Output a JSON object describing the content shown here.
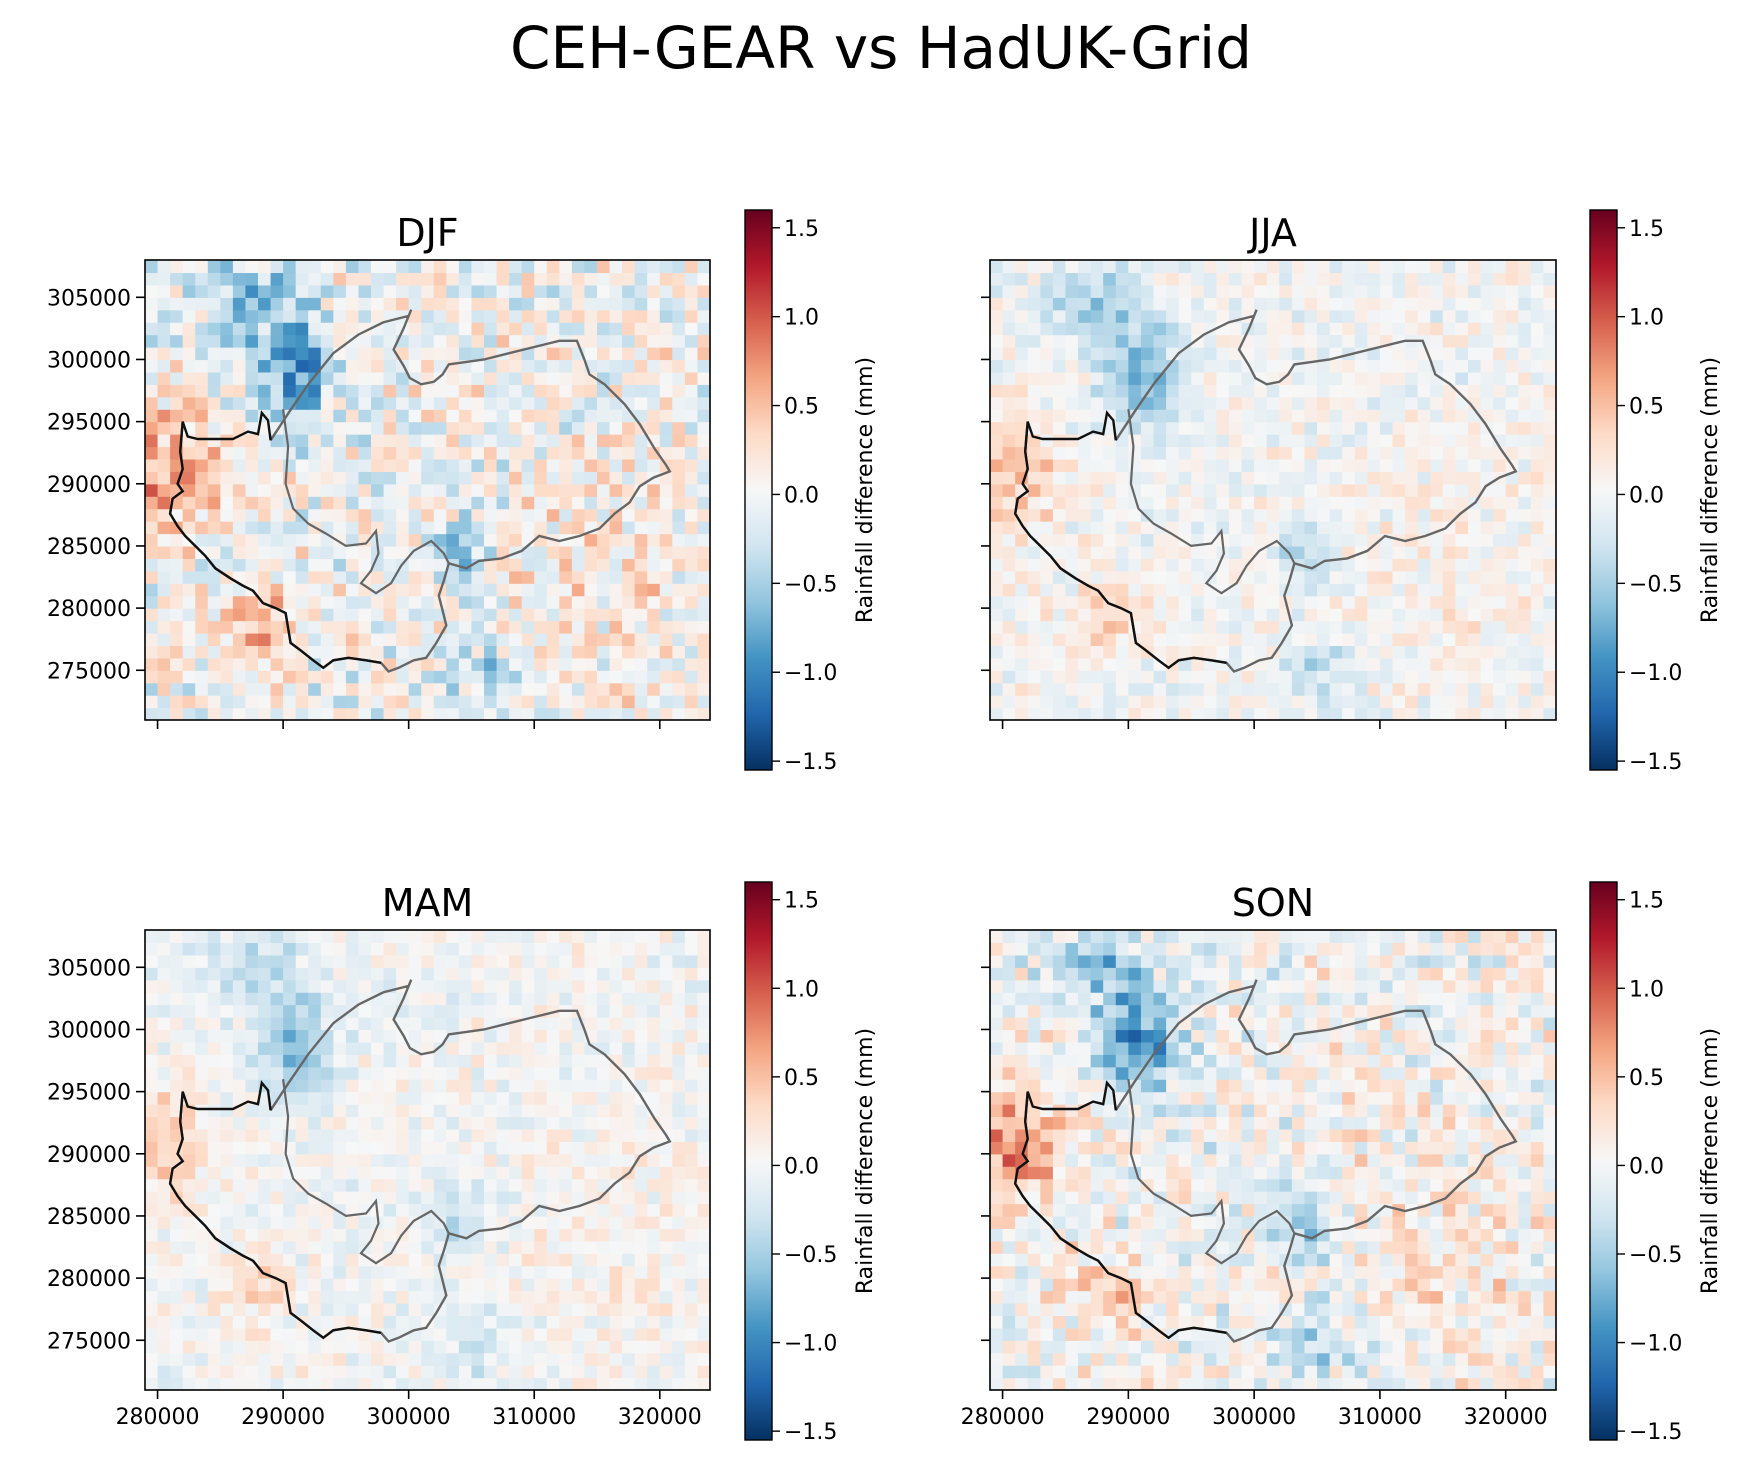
{
  "title": "CEH-GEAR vs HadUK-Grid",
  "colors": {
    "colormap": [
      "#053061",
      "#2166ac",
      "#4393c3",
      "#92c5de",
      "#d1e5f0",
      "#f7f7f7",
      "#fddbc7",
      "#f4a582",
      "#d6604d",
      "#b2182b",
      "#67001f"
    ],
    "catchment_outline": "#666666",
    "coast_outline": "#111111",
    "axis": "#000000"
  },
  "chart_data": [
    {
      "type": "heatmap",
      "title": "DJF",
      "xlim": [
        279000,
        324000
      ],
      "ylim": [
        271000,
        308000
      ],
      "xticks": [
        280000,
        290000,
        300000,
        310000,
        320000
      ],
      "yticks": [
        275000,
        280000,
        285000,
        290000,
        295000,
        300000,
        305000
      ],
      "xticks_labeled": false,
      "yticks_labeled": true,
      "grid": false,
      "grid_cell_size": 1000,
      "colorbar": {
        "label": "Rainfall difference (mm)",
        "range": [
          -1.55,
          1.6
        ],
        "ticks": [
          "1.5",
          "1.0",
          "0.5",
          "0.0",
          "−0.5",
          "−1.0",
          "−1.5"
        ],
        "tick_values": [
          1.5,
          1.0,
          0.5,
          0.0,
          -0.5,
          -1.0,
          -1.5
        ]
      },
      "value_pattern": {
        "seed": 11,
        "amplitude": 1.0,
        "noise": 0.42
      }
    },
    {
      "type": "heatmap",
      "title": "JJA",
      "xlim": [
        279000,
        324000
      ],
      "ylim": [
        271000,
        308000
      ],
      "xticks": [
        280000,
        290000,
        300000,
        310000,
        320000
      ],
      "yticks": [
        275000,
        280000,
        285000,
        290000,
        295000,
        300000,
        305000
      ],
      "xticks_labeled": false,
      "yticks_labeled": false,
      "grid": false,
      "grid_cell_size": 1000,
      "colorbar": {
        "label": "Rainfall difference (mm)",
        "range": [
          -1.55,
          1.6
        ],
        "ticks": [
          "1.5",
          "1.0",
          "0.5",
          "0.0",
          "−0.5",
          "−1.0",
          "−1.5"
        ],
        "tick_values": [
          1.5,
          1.0,
          0.5,
          0.0,
          -0.5,
          -1.0,
          -1.5
        ]
      },
      "value_pattern": {
        "seed": 23,
        "amplitude": 0.7,
        "noise": 0.2
      }
    },
    {
      "type": "heatmap",
      "title": "MAM",
      "xlim": [
        279000,
        324000
      ],
      "ylim": [
        271000,
        308000
      ],
      "xticks": [
        280000,
        290000,
        300000,
        310000,
        320000
      ],
      "yticks": [
        275000,
        280000,
        285000,
        290000,
        295000,
        300000,
        305000
      ],
      "xticks_labeled": true,
      "yticks_labeled": true,
      "grid": false,
      "grid_cell_size": 1000,
      "colorbar": {
        "label": "Rainfall difference (mm)",
        "range": [
          -1.55,
          1.6
        ],
        "ticks": [
          "1.5",
          "1.0",
          "0.5",
          "0.0",
          "−0.5",
          "−1.0",
          "−1.5"
        ],
        "tick_values": [
          1.5,
          1.0,
          0.5,
          0.0,
          -0.5,
          -1.0,
          -1.5
        ]
      },
      "value_pattern": {
        "seed": 37,
        "amplitude": 0.6,
        "noise": 0.18
      }
    },
    {
      "type": "heatmap",
      "title": "SON",
      "xlim": [
        279000,
        324000
      ],
      "ylim": [
        271000,
        308000
      ],
      "xticks": [
        280000,
        290000,
        300000,
        310000,
        320000
      ],
      "yticks": [
        275000,
        280000,
        285000,
        290000,
        295000,
        300000,
        305000
      ],
      "xticks_labeled": true,
      "yticks_labeled": false,
      "grid": false,
      "grid_cell_size": 1000,
      "colorbar": {
        "label": "Rainfall difference (mm)",
        "range": [
          -1.55,
          1.6
        ],
        "ticks": [
          "1.5",
          "1.0",
          "0.5",
          "0.0",
          "−0.5",
          "−1.0",
          "−1.5"
        ],
        "tick_values": [
          1.5,
          1.0,
          0.5,
          0.0,
          -0.5,
          -1.0,
          -1.5
        ]
      },
      "value_pattern": {
        "seed": 51,
        "amplitude": 1.0,
        "noise": 0.35
      }
    }
  ],
  "catchment_outline": [
    [
      282000,
      295000
    ],
    [
      282400,
      293800
    ],
    [
      283200,
      293600
    ],
    [
      286000,
      293600
    ],
    [
      287200,
      294200
    ],
    [
      288000,
      294000
    ],
    [
      288300,
      295700
    ],
    [
      288800,
      295100
    ],
    [
      289000,
      293500
    ],
    [
      290500,
      295800
    ],
    [
      292000,
      298000
    ],
    [
      294000,
      300500
    ],
    [
      296000,
      302000
    ],
    [
      298000,
      303000
    ],
    [
      300000,
      303500
    ],
    [
      300200,
      304000
    ],
    [
      299600,
      302500
    ],
    [
      298800,
      300800
    ],
    [
      299600,
      299500
    ],
    [
      300100,
      298500
    ],
    [
      301000,
      298000
    ],
    [
      302000,
      298200
    ],
    [
      302700,
      298800
    ],
    [
      303200,
      299600
    ],
    [
      304600,
      299800
    ],
    [
      306000,
      300000
    ],
    [
      308000,
      300500
    ],
    [
      310000,
      301000
    ],
    [
      312000,
      301500
    ],
    [
      313400,
      301500
    ],
    [
      314000,
      300000
    ],
    [
      314400,
      298800
    ],
    [
      315600,
      298000
    ],
    [
      317200,
      296400
    ],
    [
      318400,
      294800
    ],
    [
      319600,
      292800
    ],
    [
      320500,
      291500
    ],
    [
      320800,
      291000
    ],
    [
      319500,
      290500
    ],
    [
      318400,
      289800
    ],
    [
      317600,
      288500
    ],
    [
      316400,
      287600
    ],
    [
      315200,
      286400
    ],
    [
      313600,
      285800
    ],
    [
      312000,
      285400
    ],
    [
      310400,
      285800
    ],
    [
      309000,
      284600
    ],
    [
      307400,
      284000
    ],
    [
      305600,
      283800
    ],
    [
      304600,
      283200
    ],
    [
      303200,
      283600
    ],
    [
      302800,
      282200
    ],
    [
      302400,
      281000
    ],
    [
      302700,
      279800
    ],
    [
      303000,
      278600
    ],
    [
      302200,
      277200
    ],
    [
      301400,
      276000
    ],
    [
      300400,
      275800
    ],
    [
      299200,
      275200
    ],
    [
      298400,
      274900
    ],
    [
      297800,
      275600
    ],
    [
      296600,
      275800
    ],
    [
      295200,
      276000
    ],
    [
      294000,
      275800
    ],
    [
      293200,
      275200
    ],
    [
      292400,
      275800
    ],
    [
      291400,
      276600
    ],
    [
      290600,
      277200
    ],
    [
      290400,
      278400
    ],
    [
      290200,
      279600
    ],
    [
      289400,
      280000
    ],
    [
      288400,
      280400
    ],
    [
      287600,
      281400
    ],
    [
      286800,
      281800
    ],
    [
      285800,
      282400
    ],
    [
      284600,
      283200
    ],
    [
      283800,
      284200
    ],
    [
      283000,
      285000
    ],
    [
      282200,
      285800
    ],
    [
      281600,
      286600
    ],
    [
      281000,
      287600
    ],
    [
      281200,
      288800
    ],
    [
      282000,
      289400
    ],
    [
      281600,
      290000
    ],
    [
      282000,
      291200
    ],
    [
      281800,
      292600
    ],
    [
      282000,
      295000
    ]
  ],
  "inner_divide": [
    [
      290000,
      296000
    ],
    [
      290400,
      293000
    ],
    [
      290200,
      290000
    ],
    [
      290800,
      288000
    ],
    [
      292000,
      286800
    ],
    [
      293400,
      286000
    ],
    [
      295000,
      285000
    ],
    [
      296600,
      285200
    ],
    [
      297400,
      286200
    ],
    [
      297600,
      284400
    ],
    [
      297000,
      283000
    ],
    [
      296200,
      282000
    ],
    [
      297400,
      281200
    ],
    [
      298600,
      282000
    ],
    [
      299400,
      283400
    ],
    [
      300400,
      284600
    ],
    [
      301800,
      285400
    ],
    [
      302800,
      284400
    ],
    [
      303200,
      283600
    ]
  ]
}
